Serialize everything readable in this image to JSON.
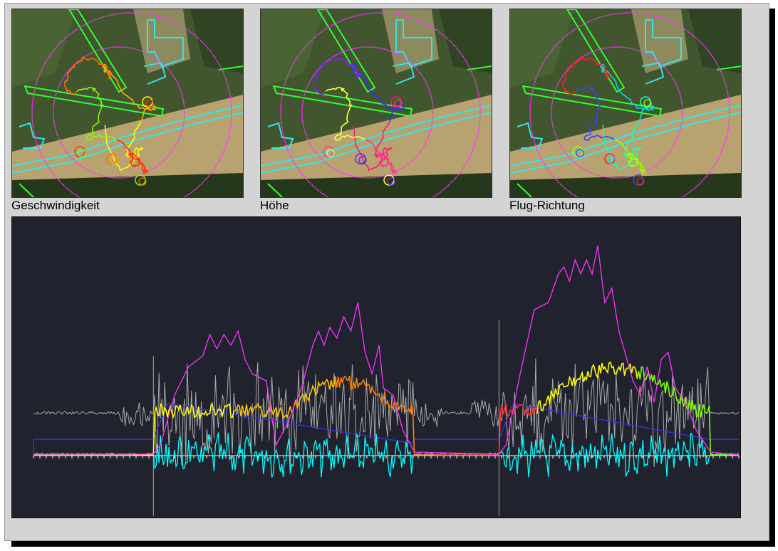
{
  "maps": [
    {
      "caption": "Geschwindigkeit",
      "track_colors": [
        "#ffff00",
        "#ffb000",
        "#ff7000",
        "#80ff00",
        "#ff3000"
      ]
    },
    {
      "caption": "Höhe",
      "track_colors": [
        "#ff1a6a",
        "#3030ff",
        "#7a20ff",
        "#ffff40",
        "#ff3399"
      ]
    },
    {
      "caption": "Flug-Richtung",
      "track_colors": [
        "#20ffaa",
        "#00e0ff",
        "#ff2020",
        "#4040ff",
        "#a0ff00"
      ]
    }
  ],
  "colors": {
    "frame_bg": "#d4d4d4",
    "chart_bg": "#20232e",
    "airspace_circle": "#ff33ff",
    "zone_outline": "#33e6e6",
    "runway_outline": "#33ff33",
    "speed_series": "#ffaa00",
    "altitude_series": "#ff33ff",
    "vario_series": "#00ffff",
    "gray_series": "#a8a8a8",
    "blue_series": "#3b2fd6"
  }
}
